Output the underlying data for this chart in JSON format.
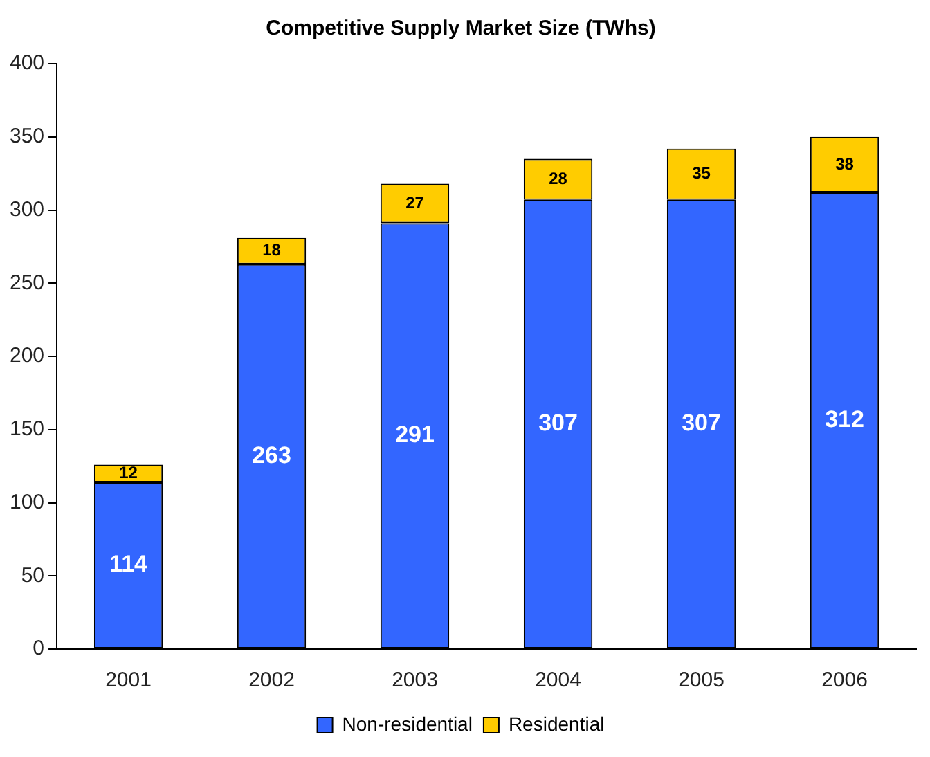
{
  "chart_data": {
    "type": "bar",
    "title": "Competitive Supply Market Size (TWhs)",
    "categories": [
      "2001",
      "2002",
      "2003",
      "2004",
      "2005",
      "2006"
    ],
    "series": [
      {
        "name": "Non-residential",
        "color": "#3366ff",
        "values": [
          114,
          263,
          291,
          307,
          307,
          312
        ]
      },
      {
        "name": "Residential",
        "color": "#ffcc00",
        "values": [
          12,
          18,
          27,
          28,
          35,
          38
        ]
      }
    ],
    "stacked": true,
    "data_labels": true,
    "grid": false,
    "legend": "bottom",
    "ylim": [
      0,
      400
    ],
    "yticks": [
      0,
      50,
      100,
      150,
      200,
      250,
      300,
      350,
      400
    ]
  }
}
